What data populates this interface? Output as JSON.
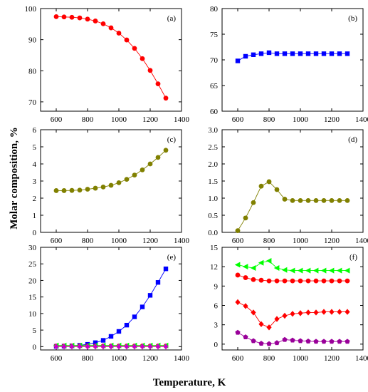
{
  "figure": {
    "ylabel": "Molar composition, %",
    "xlabel": "Temperature, K"
  },
  "chart_data": [
    {
      "type": "line",
      "label": "(a)",
      "xlim": [
        500,
        1400
      ],
      "ylim": [
        67,
        100
      ],
      "xticks": [
        600,
        800,
        1000,
        1200,
        1400
      ],
      "yticks": [
        70,
        80,
        90,
        100
      ],
      "series": [
        {
          "color": "#ff0000",
          "marker": "circle",
          "x": [
            600,
            650,
            700,
            750,
            800,
            850,
            900,
            950,
            1000,
            1050,
            1100,
            1150,
            1200,
            1250,
            1300
          ],
          "y": [
            97.4,
            97.3,
            97.2,
            97.0,
            96.6,
            96.0,
            95.1,
            93.8,
            92.1,
            89.9,
            87.2,
            83.9,
            80.1,
            75.8,
            71.2
          ]
        }
      ]
    },
    {
      "type": "line",
      "label": "(b)",
      "xlim": [
        500,
        1400
      ],
      "ylim": [
        60,
        80
      ],
      "xticks": [
        600,
        800,
        1000,
        1200,
        1400
      ],
      "yticks": [
        60,
        65,
        70,
        75,
        80
      ],
      "series": [
        {
          "color": "#0000ff",
          "marker": "square",
          "x": [
            600,
            650,
            700,
            750,
            800,
            850,
            900,
            950,
            1000,
            1050,
            1100,
            1150,
            1200,
            1250,
            1300
          ],
          "y": [
            69.8,
            70.7,
            71.0,
            71.2,
            71.4,
            71.2,
            71.2,
            71.2,
            71.2,
            71.2,
            71.2,
            71.2,
            71.2,
            71.2,
            71.2
          ]
        }
      ]
    },
    {
      "type": "line",
      "label": "(c)",
      "xlim": [
        500,
        1400
      ],
      "ylim": [
        0,
        6
      ],
      "xticks": [
        600,
        800,
        1000,
        1200,
        1400
      ],
      "yticks": [
        0,
        1,
        2,
        3,
        4,
        5,
        6
      ],
      "series": [
        {
          "color": "#808000",
          "marker": "circle",
          "x": [
            600,
            650,
            700,
            750,
            800,
            850,
            900,
            950,
            1000,
            1050,
            1100,
            1150,
            1200,
            1250,
            1300
          ],
          "y": [
            2.44,
            2.44,
            2.45,
            2.47,
            2.52,
            2.58,
            2.65,
            2.75,
            2.9,
            3.1,
            3.35,
            3.65,
            4.0,
            4.38,
            4.8
          ]
        }
      ]
    },
    {
      "type": "line",
      "label": "(d)",
      "xlim": [
        500,
        1400
      ],
      "ylim": [
        0,
        3.0
      ],
      "xticks": [
        600,
        800,
        1000,
        1200,
        1400
      ],
      "yticks": [
        0.0,
        0.5,
        1.0,
        1.5,
        2.0,
        2.5,
        3.0
      ],
      "yticklabels": [
        "0.0",
        "0.5",
        "1.0",
        "1.5",
        "2.0",
        "2.5",
        "3.0"
      ],
      "series": [
        {
          "color": "#808000",
          "marker": "circle",
          "x": [
            600,
            650,
            700,
            750,
            800,
            850,
            900,
            950,
            1000,
            1050,
            1100,
            1150,
            1200,
            1250,
            1300
          ],
          "y": [
            0.05,
            0.42,
            0.87,
            1.35,
            1.48,
            1.25,
            0.97,
            0.93,
            0.93,
            0.93,
            0.93,
            0.93,
            0.93,
            0.93,
            0.93
          ]
        }
      ]
    },
    {
      "type": "line",
      "label": "(e)",
      "xlim": [
        500,
        1400
      ],
      "ylim": [
        -1,
        30
      ],
      "xticks": [
        600,
        800,
        1000,
        1200,
        1400
      ],
      "yticks": [
        0,
        5,
        10,
        15,
        20,
        25,
        30
      ],
      "series": [
        {
          "color": "#0000ff",
          "marker": "square",
          "x": [
            600,
            650,
            700,
            750,
            800,
            850,
            900,
            950,
            1000,
            1050,
            1100,
            1150,
            1200,
            1250,
            1300
          ],
          "y": [
            0.1,
            0.15,
            0.25,
            0.4,
            0.7,
            1.2,
            1.9,
            3.1,
            4.6,
            6.5,
            9.0,
            12.0,
            15.5,
            19.4,
            23.5
          ]
        },
        {
          "color": "#ff0000",
          "marker": "circle",
          "x": [
            600,
            650,
            700,
            750,
            800,
            850,
            900,
            950,
            1000,
            1050,
            1100,
            1150,
            1200,
            1250,
            1300
          ],
          "y": [
            0.2,
            0.2,
            0.2,
            0.2,
            0.2,
            0.2,
            0.2,
            0.2,
            0.2,
            0.2,
            0.2,
            0.2,
            0.2,
            0.2,
            0.2
          ]
        },
        {
          "color": "#00ff00",
          "marker": "triangle-left",
          "x": [
            600,
            650,
            700,
            750,
            800,
            850,
            900,
            950,
            1000,
            1050,
            1100,
            1150,
            1200,
            1250,
            1300
          ],
          "y": [
            0.35,
            0.35,
            0.35,
            0.35,
            0.35,
            0.35,
            0.35,
            0.35,
            0.35,
            0.35,
            0.35,
            0.35,
            0.35,
            0.35,
            0.35
          ]
        },
        {
          "color": "#cc00cc",
          "marker": "diamond",
          "x": [
            600,
            650,
            700,
            750,
            800,
            850,
            900,
            950,
            1000,
            1050,
            1100,
            1150,
            1200,
            1250,
            1300
          ],
          "y": [
            0.05,
            0.05,
            0.05,
            0.05,
            0.05,
            0.05,
            0.05,
            0.05,
            0.05,
            0.05,
            0.05,
            0.05,
            0.05,
            0.05,
            0.05
          ]
        }
      ]
    },
    {
      "type": "line",
      "label": "(f)",
      "xlim": [
        500,
        1400
      ],
      "ylim": [
        -0.9,
        15
      ],
      "xticks": [
        600,
        800,
        1000,
        1200,
        1400
      ],
      "yticks": [
        0,
        3,
        6,
        9,
        12,
        15
      ],
      "series": [
        {
          "color": "#00ff00",
          "marker": "triangle-left",
          "x": [
            600,
            650,
            700,
            750,
            800,
            850,
            900,
            950,
            1000,
            1050,
            1100,
            1150,
            1200,
            1250,
            1300
          ],
          "y": [
            12.3,
            12.0,
            11.8,
            12.6,
            12.9,
            11.8,
            11.5,
            11.4,
            11.4,
            11.4,
            11.4,
            11.4,
            11.4,
            11.4,
            11.4
          ]
        },
        {
          "color": "#ff0000",
          "marker": "circle",
          "x": [
            600,
            650,
            700,
            750,
            800,
            850,
            900,
            950,
            1000,
            1050,
            1100,
            1150,
            1200,
            1250,
            1300
          ],
          "y": [
            10.7,
            10.3,
            10.0,
            9.9,
            9.8,
            9.8,
            9.8,
            9.8,
            9.8,
            9.8,
            9.8,
            9.8,
            9.8,
            9.8,
            9.8
          ]
        },
        {
          "color": "#ff0000",
          "marker": "diamond",
          "x": [
            600,
            650,
            700,
            750,
            800,
            850,
            900,
            950,
            1000,
            1050,
            1100,
            1150,
            1200,
            1250,
            1300
          ],
          "y": [
            6.5,
            5.9,
            4.9,
            3.1,
            2.6,
            3.9,
            4.4,
            4.7,
            4.8,
            4.9,
            4.9,
            5.0,
            5.0,
            5.0,
            5.0
          ]
        },
        {
          "color": "#990099",
          "marker": "pentagon",
          "x": [
            600,
            650,
            700,
            750,
            800,
            850,
            900,
            950,
            1000,
            1050,
            1100,
            1150,
            1200,
            1250,
            1300
          ],
          "y": [
            1.8,
            1.1,
            0.5,
            0.1,
            0.05,
            0.2,
            0.7,
            0.6,
            0.5,
            0.45,
            0.4,
            0.4,
            0.4,
            0.4,
            0.4
          ]
        }
      ]
    }
  ]
}
